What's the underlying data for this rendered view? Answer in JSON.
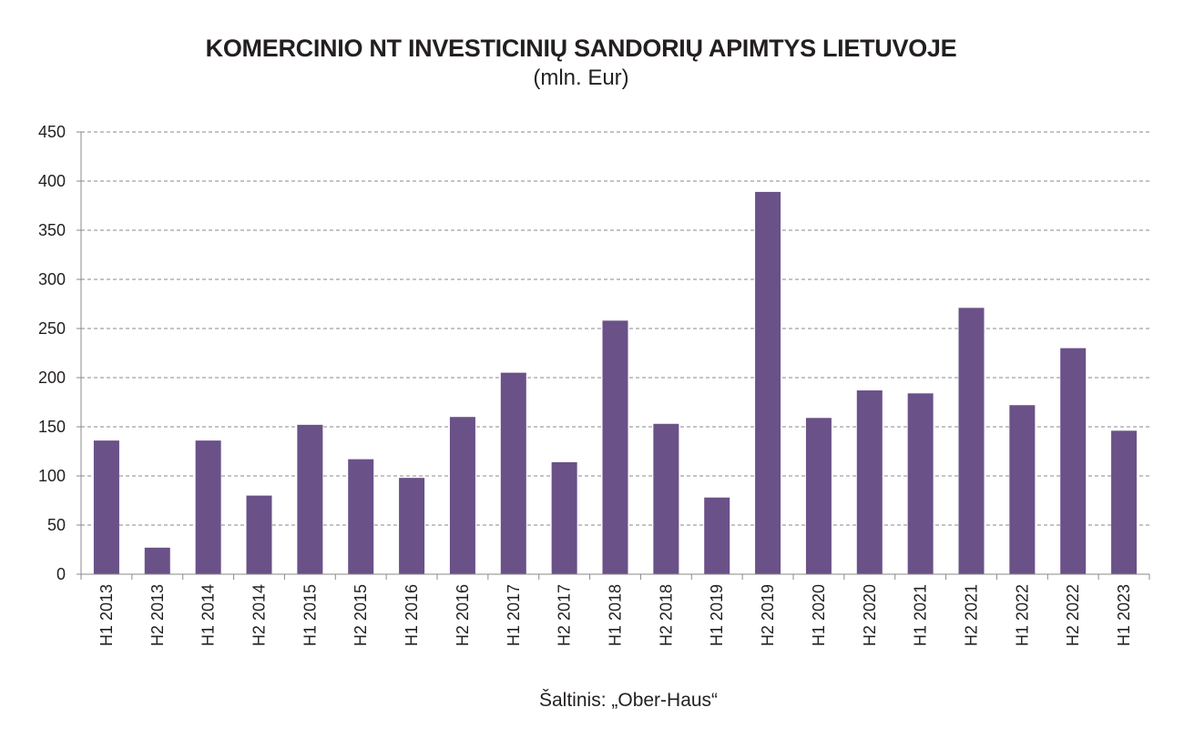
{
  "chart_data": {
    "type": "bar",
    "title": "KOMERCINIO NT INVESTICINIŲ SANDORIŲ APIMTYS LIETUVOJE",
    "subtitle": "(mln. Eur)",
    "xlabel": "",
    "ylabel": "",
    "ylim": [
      0,
      450
    ],
    "yticks": [
      0,
      50,
      100,
      150,
      200,
      250,
      300,
      350,
      400,
      450
    ],
    "grid": true,
    "bar_color": "#6a5188",
    "categories": [
      "H1 2013",
      "H2 2013",
      "H1 2014",
      "H2 2014",
      "H1 2015",
      "H2 2015",
      "H1 2016",
      "H2 2016",
      "H1 2017",
      "H2 2017",
      "H1 2018",
      "H2 2018",
      "H1 2019",
      "H2 2019",
      "H1 2020",
      "H2 2020",
      "H1 2021",
      "H2 2021",
      "H1 2022",
      "H2 2022",
      "H1 2023"
    ],
    "values": [
      136,
      27,
      136,
      80,
      152,
      117,
      98,
      160,
      205,
      114,
      258,
      153,
      78,
      389,
      159,
      187,
      184,
      271,
      172,
      230,
      146
    ]
  },
  "source": "Šaltinis: „Ober-Haus“"
}
